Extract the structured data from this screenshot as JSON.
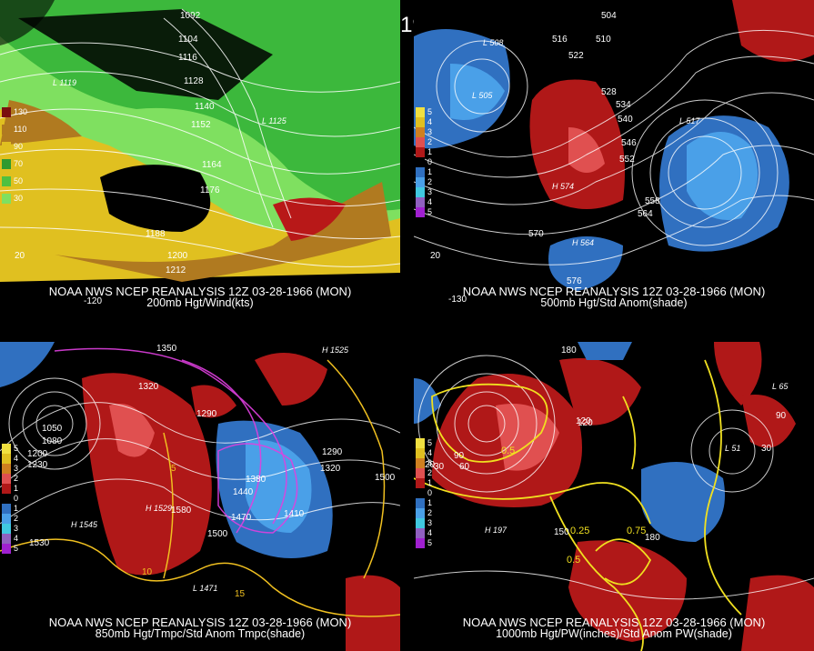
{
  "title": "12Z 03-28-1966 (MON)",
  "panels": [
    {
      "caption1": "NOAA NWS NCEP REANALYSIS 12Z 03-28-1966 (MON)",
      "caption2": "200mb Hgt/Wind(kts)",
      "legend": [
        {
          "label": "130",
          "color": "#7a0f0f"
        },
        {
          "label": "110",
          "color": "#b07a20"
        },
        {
          "label": "90",
          "color": "#e0c020"
        },
        {
          "label": "70",
          "color": "#2f9a2f"
        },
        {
          "label": "50",
          "color": "#4fc040"
        },
        {
          "label": "30",
          "color": "#7fe060"
        }
      ],
      "contour_labels": [
        "1092",
        "1104",
        "1116",
        "1128",
        "1140",
        "1152",
        "1164",
        "1176",
        "1188",
        "1200",
        "1212"
      ],
      "low_labels": [
        "L 1119",
        "L 1125"
      ],
      "lon_labels": [
        "-120",
        "20"
      ]
    },
    {
      "caption1": "NOAA NWS NCEP REANALYSIS 12Z 03-28-1966 (MON)",
      "caption2": "500mb Hgt/Std Anom(shade)",
      "legend": [
        {
          "label": "5",
          "color": "#f0e040"
        },
        {
          "label": "4",
          "color": "#e0c020"
        },
        {
          "label": "3",
          "color": "#d08020"
        },
        {
          "label": "2",
          "color": "#e05050"
        },
        {
          "label": "1",
          "color": "#b01818"
        },
        {
          "label": "0",
          "color": "#000000"
        },
        {
          "label": "1",
          "color": "#3070c0"
        },
        {
          "label": "2",
          "color": "#4aa0e8"
        },
        {
          "label": "3",
          "color": "#40c8e0"
        },
        {
          "label": "4",
          "color": "#9060c0"
        },
        {
          "label": "5",
          "color": "#a020d0"
        }
      ],
      "contour_labels": [
        "504",
        "510",
        "516",
        "522",
        "528",
        "534",
        "540",
        "546",
        "552",
        "558",
        "564",
        "570",
        "576"
      ],
      "low_labels": [
        "L 508",
        "L 505",
        "L 517",
        "H 574",
        "H 564"
      ],
      "lon_labels": [
        "-130",
        "20"
      ]
    },
    {
      "caption1": "NOAA NWS NCEP REANALYSIS 12Z 03-28-1966 (MON)",
      "caption2": "850mb Hgt/Tmpc/Std Anom Tmpc(shade)",
      "legend": [
        {
          "label": "5",
          "color": "#f0e040"
        },
        {
          "label": "4",
          "color": "#e0c020"
        },
        {
          "label": "3",
          "color": "#d08020"
        },
        {
          "label": "2",
          "color": "#e05050"
        },
        {
          "label": "1",
          "color": "#b01818"
        },
        {
          "label": "0",
          "color": "#000000"
        },
        {
          "label": "1",
          "color": "#3070c0"
        },
        {
          "label": "2",
          "color": "#4aa0e8"
        },
        {
          "label": "3",
          "color": "#40c8e0"
        },
        {
          "label": "4",
          "color": "#9060c0"
        },
        {
          "label": "5",
          "color": "#a020d0"
        }
      ],
      "contour_labels": [
        "1350",
        "1320",
        "1290",
        "1050",
        "1080",
        "1200",
        "1230",
        "1380",
        "1440",
        "1470",
        "1410",
        "1500",
        "1530",
        "1580",
        "1320",
        "1290",
        "1500"
      ],
      "low_labels": [
        "H 1545",
        "H 1529",
        "L 1471",
        "H 1525"
      ],
      "lon_labels": [
        "5",
        "10",
        "15"
      ]
    },
    {
      "caption1": "NOAA NWS NCEP REANALYSIS 12Z 03-28-1966 (MON)",
      "caption2": "1000mb Hgt/PW(inches)/Std Anom PW(shade)",
      "legend": [
        {
          "label": "5",
          "color": "#f0e040"
        },
        {
          "label": "4",
          "color": "#e0c020"
        },
        {
          "label": "3",
          "color": "#d08020"
        },
        {
          "label": "2",
          "color": "#e05050"
        },
        {
          "label": "1",
          "color": "#b01818"
        },
        {
          "label": "0",
          "color": "#000000"
        },
        {
          "label": "1",
          "color": "#3070c0"
        },
        {
          "label": "2",
          "color": "#4aa0e8"
        },
        {
          "label": "3",
          "color": "#40c8e0"
        },
        {
          "label": "4",
          "color": "#9060c0"
        },
        {
          "label": "5",
          "color": "#a020d0"
        }
      ],
      "contour_labels": [
        "180",
        "120",
        "90",
        "60",
        "30",
        "0.5",
        "0.25",
        "150",
        "180",
        "0.75",
        "120",
        "90",
        "0.5"
      ],
      "low_labels": [
        "H 197",
        "L 65",
        "L 51"
      ],
      "lon_labels": [
        "30",
        "20"
      ]
    }
  ]
}
